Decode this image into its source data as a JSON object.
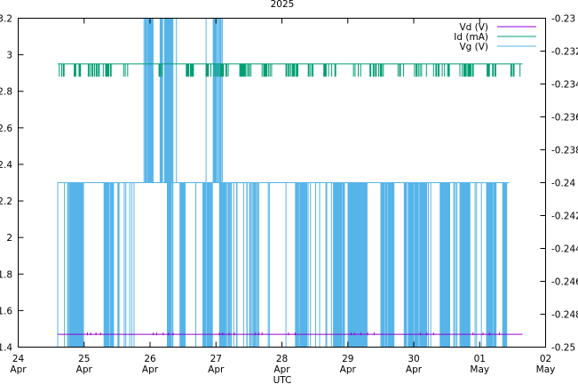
{
  "chart_data": {
    "type": "line",
    "title": "2025",
    "xlabel": "UTC",
    "ylabel": "",
    "y2label": "",
    "x_ticks": [
      {
        "day": 0,
        "line1": "24",
        "line2": "Apr"
      },
      {
        "day": 1,
        "line1": "25",
        "line2": "Apr"
      },
      {
        "day": 2,
        "line1": "26",
        "line2": "Apr"
      },
      {
        "day": 3,
        "line1": "27",
        "line2": "Apr"
      },
      {
        "day": 4,
        "line1": "28",
        "line2": "Apr"
      },
      {
        "day": 5,
        "line1": "29",
        "line2": "Apr"
      },
      {
        "day": 6,
        "line1": "30",
        "line2": "Apr"
      },
      {
        "day": 7,
        "line1": "01",
        "line2": "May"
      },
      {
        "day": 8,
        "line1": "02",
        "line2": "May"
      }
    ],
    "xlim_days": [
      0,
      8
    ],
    "y_left_ticks": [
      "1.4",
      "1.6",
      "1.8",
      "2",
      "2.2",
      "2.4",
      "2.6",
      "2.8",
      "3",
      "3.2"
    ],
    "ylim_left": [
      1.4,
      3.2
    ],
    "y_right_ticks": [
      "-0.25",
      "-0.248",
      "-0.246",
      "-0.244",
      "-0.242",
      "-0.24",
      "-0.238",
      "-0.236",
      "-0.234",
      "-0.232",
      "-0.23"
    ],
    "ylim_right": [
      -0.25,
      -0.23
    ],
    "series": [
      {
        "name": "Vd (V)",
        "axis": "left",
        "color": "#9400d3",
        "baseline": 1.47,
        "range_days": [
          0.6,
          7.65
        ],
        "blip_days": [
          1.05,
          1.1,
          1.18,
          1.25,
          2.05,
          2.1,
          2.2,
          2.28,
          2.35,
          3.05,
          3.1,
          3.2,
          3.28,
          3.6,
          3.65,
          3.7,
          4.1,
          4.2,
          5.05,
          5.1,
          5.2,
          5.3,
          5.4,
          6.1,
          6.2,
          6.3,
          6.9,
          7.05,
          7.15,
          7.3
        ]
      },
      {
        "name": "Id (mA)",
        "axis": "left",
        "color": "#009e73",
        "baseline": 2.95,
        "low": 2.88,
        "range_days": [
          0.6,
          7.65
        ],
        "dropout_bands": [
          [
            0.6,
            0.7
          ],
          [
            0.85,
            0.95
          ],
          [
            1.05,
            1.45
          ],
          [
            1.6,
            1.72
          ],
          [
            2.1,
            2.2
          ],
          [
            2.55,
            2.7
          ],
          [
            2.85,
            3.2
          ],
          [
            3.35,
            3.55
          ],
          [
            3.7,
            3.85
          ],
          [
            4.05,
            4.25
          ],
          [
            4.4,
            4.5
          ],
          [
            4.6,
            4.85
          ],
          [
            5.05,
            5.2
          ],
          [
            5.3,
            5.55
          ],
          [
            5.75,
            5.85
          ],
          [
            6.0,
            6.2
          ],
          [
            6.3,
            6.55
          ],
          [
            6.7,
            6.95
          ],
          [
            7.1,
            7.25
          ],
          [
            7.45,
            7.55
          ],
          [
            7.6,
            7.65
          ]
        ]
      },
      {
        "name": "Vg (V)",
        "axis": "right",
        "color": "#56b4e9",
        "high": -0.24,
        "low": -0.25,
        "spike": -0.23,
        "range_days": [
          0.6,
          7.45
        ],
        "dense_bands": [
          [
            0.75,
            1.0
          ],
          [
            1.3,
            1.45
          ],
          [
            2.25,
            2.35
          ],
          [
            2.45,
            2.55
          ],
          [
            2.8,
            2.95
          ],
          [
            3.05,
            3.25
          ],
          [
            3.55,
            3.65
          ],
          [
            4.2,
            4.4
          ],
          [
            4.75,
            4.95
          ],
          [
            5.0,
            5.3
          ],
          [
            5.5,
            5.7
          ],
          [
            5.85,
            6.2
          ],
          [
            6.4,
            6.55
          ],
          [
            6.7,
            6.85
          ],
          [
            7.1,
            7.25
          ],
          [
            7.35,
            7.42
          ]
        ],
        "sparse_bands": [
          [
            0.6,
            0.75
          ],
          [
            1.45,
            1.9
          ],
          [
            2.55,
            2.8
          ],
          [
            3.25,
            4.2
          ],
          [
            4.4,
            4.75
          ],
          [
            6.2,
            6.4
          ],
          [
            6.55,
            6.7
          ],
          [
            6.85,
            7.1
          ],
          [
            7.25,
            7.35
          ]
        ],
        "spike_bands": [
          [
            1.9,
            2.05
          ],
          [
            2.15,
            2.35
          ],
          [
            2.95,
            3.1
          ]
        ],
        "partial_spike_days": [
          [
            2.3,
            2.95
          ],
          [
            2.4,
            3.05
          ],
          [
            2.85,
            3.1
          ]
        ]
      }
    ],
    "legend_position": "top-right",
    "grid": false
  }
}
